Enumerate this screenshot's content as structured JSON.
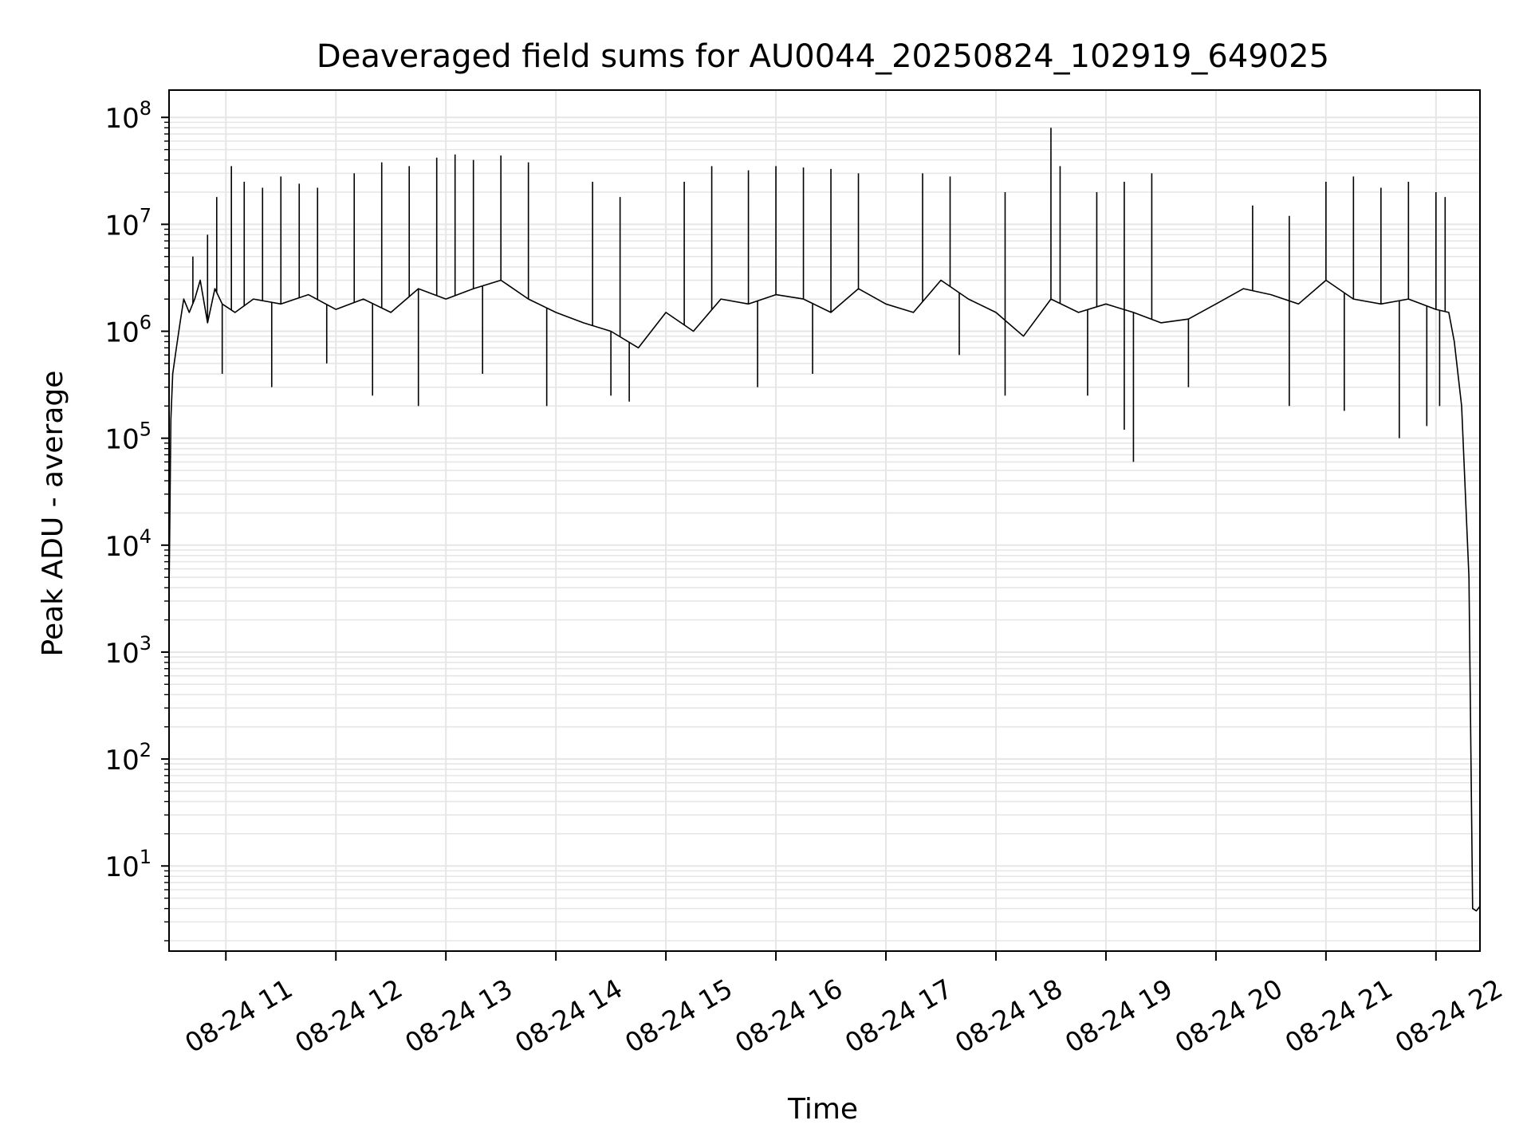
{
  "chart_data": {
    "type": "line",
    "title": "Deaveraged field sums for AU0044_20250824_102919_649025",
    "xlabel": "Time",
    "ylabel": "Peak ADU - average",
    "x_ticks": [
      {
        "value": "2025-08-24T11:00",
        "label": "08-24 11"
      },
      {
        "value": "2025-08-24T12:00",
        "label": "08-24 12"
      },
      {
        "value": "2025-08-24T13:00",
        "label": "08-24 13"
      },
      {
        "value": "2025-08-24T14:00",
        "label": "08-24 14"
      },
      {
        "value": "2025-08-24T15:00",
        "label": "08-24 15"
      },
      {
        "value": "2025-08-24T16:00",
        "label": "08-24 16"
      },
      {
        "value": "2025-08-24T17:00",
        "label": "08-24 17"
      },
      {
        "value": "2025-08-24T18:00",
        "label": "08-24 18"
      },
      {
        "value": "2025-08-24T19:00",
        "label": "08-24 19"
      },
      {
        "value": "2025-08-24T20:00",
        "label": "08-24 20"
      },
      {
        "value": "2025-08-24T21:00",
        "label": "08-24 21"
      },
      {
        "value": "2025-08-24T22:00",
        "label": "08-24 22"
      }
    ],
    "xlim": [
      "2025-08-24T10:29",
      "2025-08-24T22:24"
    ],
    "y_scale": "log",
    "y_ticks": [
      {
        "value": 10,
        "base": "10",
        "exp": "1"
      },
      {
        "value": 100,
        "base": "10",
        "exp": "2"
      },
      {
        "value": 1000,
        "base": "10",
        "exp": "3"
      },
      {
        "value": 10000,
        "base": "10",
        "exp": "4"
      },
      {
        "value": 100000,
        "base": "10",
        "exp": "5"
      },
      {
        "value": 1000000,
        "base": "10",
        "exp": "6"
      },
      {
        "value": 10000000,
        "base": "10",
        "exp": "7"
      },
      {
        "value": 100000000,
        "base": "10",
        "exp": "8"
      }
    ],
    "ylim": [
      1.6,
      180000000
    ],
    "grid": true,
    "line_color": "#000000",
    "grid_color": "#e6e6e6",
    "series": [
      {
        "x": [
          "2025-08-24T10:29",
          "2025-08-24T10:30",
          "2025-08-24T10:31",
          "2025-08-24T10:33",
          "2025-08-24T10:35",
          "2025-08-24T10:37",
          "2025-08-24T10:40",
          "2025-08-24T10:43",
          "2025-08-24T10:46",
          "2025-08-24T10:50",
          "2025-08-24T10:54",
          "2025-08-24T10:58",
          "2025-08-24T11:05",
          "2025-08-24T11:15",
          "2025-08-24T11:30",
          "2025-08-24T11:45",
          "2025-08-24T12:00",
          "2025-08-24T12:15",
          "2025-08-24T12:30",
          "2025-08-24T12:45",
          "2025-08-24T13:00",
          "2025-08-24T13:15",
          "2025-08-24T13:30",
          "2025-08-24T13:45",
          "2025-08-24T14:00",
          "2025-08-24T14:15",
          "2025-08-24T14:30",
          "2025-08-24T14:45",
          "2025-08-24T15:00",
          "2025-08-24T15:15",
          "2025-08-24T15:30",
          "2025-08-24T15:45",
          "2025-08-24T16:00",
          "2025-08-24T16:15",
          "2025-08-24T16:30",
          "2025-08-24T16:45",
          "2025-08-24T17:00",
          "2025-08-24T17:15",
          "2025-08-24T17:30",
          "2025-08-24T17:45",
          "2025-08-24T18:00",
          "2025-08-24T18:15",
          "2025-08-24T18:30",
          "2025-08-24T18:45",
          "2025-08-24T19:00",
          "2025-08-24T19:15",
          "2025-08-24T19:30",
          "2025-08-24T19:45",
          "2025-08-24T20:00",
          "2025-08-24T20:15",
          "2025-08-24T20:30",
          "2025-08-24T20:45",
          "2025-08-24T21:00",
          "2025-08-24T21:15",
          "2025-08-24T21:30",
          "2025-08-24T21:45",
          "2025-08-24T22:00",
          "2025-08-24T22:07",
          "2025-08-24T22:10",
          "2025-08-24T22:14",
          "2025-08-24T22:18",
          "2025-08-24T22:20",
          "2025-08-24T22:22",
          "2025-08-24T22:24"
        ],
        "y": [
          3500,
          150000,
          400000,
          700000,
          1200000,
          2000000,
          1500000,
          2000000,
          3000000,
          1200000,
          2500000,
          1800000,
          1500000,
          2000000,
          1800000,
          2200000,
          1600000,
          2000000,
          1500000,
          2500000,
          2000000,
          2500000,
          3000000,
          2000000,
          1500000,
          1200000,
          1000000,
          700000,
          1500000,
          1000000,
          2000000,
          1800000,
          2200000,
          2000000,
          1500000,
          2500000,
          1800000,
          1500000,
          3000000,
          2000000,
          1500000,
          900000,
          2000000,
          1500000,
          1800000,
          1500000,
          1200000,
          1300000,
          1800000,
          2500000,
          2200000,
          1800000,
          3000000,
          2000000,
          1800000,
          2000000,
          1600000,
          1500000,
          800000,
          200000,
          5000,
          4,
          3.8,
          4.2
        ],
        "spikes": [
          [
            "2025-08-24T10:42",
            5000000
          ],
          [
            "2025-08-24T10:50",
            8000000
          ],
          [
            "2025-08-24T10:55",
            18000000
          ],
          [
            "2025-08-24T11:03",
            35000000
          ],
          [
            "2025-08-24T11:10",
            25000000
          ],
          [
            "2025-08-24T11:20",
            22000000
          ],
          [
            "2025-08-24T11:30",
            28000000
          ],
          [
            "2025-08-24T11:40",
            24000000
          ],
          [
            "2025-08-24T11:50",
            22000000
          ],
          [
            "2025-08-24T12:10",
            30000000
          ],
          [
            "2025-08-24T12:25",
            38000000
          ],
          [
            "2025-08-24T12:40",
            35000000
          ],
          [
            "2025-08-24T12:55",
            42000000
          ],
          [
            "2025-08-24T13:05",
            45000000
          ],
          [
            "2025-08-24T13:15",
            40000000
          ],
          [
            "2025-08-24T13:30",
            44000000
          ],
          [
            "2025-08-24T13:45",
            38000000
          ],
          [
            "2025-08-24T14:20",
            25000000
          ],
          [
            "2025-08-24T14:35",
            18000000
          ],
          [
            "2025-08-24T15:10",
            25000000
          ],
          [
            "2025-08-24T15:25",
            35000000
          ],
          [
            "2025-08-24T15:45",
            32000000
          ],
          [
            "2025-08-24T16:00",
            35000000
          ],
          [
            "2025-08-24T16:15",
            34000000
          ],
          [
            "2025-08-24T16:30",
            33000000
          ],
          [
            "2025-08-24T16:45",
            30000000
          ],
          [
            "2025-08-24T17:20",
            30000000
          ],
          [
            "2025-08-24T17:35",
            28000000
          ],
          [
            "2025-08-24T18:05",
            20000000
          ],
          [
            "2025-08-24T18:30",
            80000000
          ],
          [
            "2025-08-24T18:35",
            35000000
          ],
          [
            "2025-08-24T18:55",
            20000000
          ],
          [
            "2025-08-24T19:10",
            25000000
          ],
          [
            "2025-08-24T19:25",
            30000000
          ],
          [
            "2025-08-24T20:20",
            15000000
          ],
          [
            "2025-08-24T20:40",
            12000000
          ],
          [
            "2025-08-24T21:00",
            25000000
          ],
          [
            "2025-08-24T21:15",
            28000000
          ],
          [
            "2025-08-24T21:30",
            22000000
          ],
          [
            "2025-08-24T21:45",
            25000000
          ],
          [
            "2025-08-24T22:00",
            20000000
          ],
          [
            "2025-08-24T22:05",
            18000000
          ]
        ],
        "dips": [
          [
            "2025-08-24T10:58",
            400000
          ],
          [
            "2025-08-24T11:25",
            300000
          ],
          [
            "2025-08-24T11:55",
            500000
          ],
          [
            "2025-08-24T12:20",
            250000
          ],
          [
            "2025-08-24T12:45",
            200000
          ],
          [
            "2025-08-24T13:20",
            400000
          ],
          [
            "2025-08-24T13:55",
            200000
          ],
          [
            "2025-08-24T14:30",
            250000
          ],
          [
            "2025-08-24T14:40",
            220000
          ],
          [
            "2025-08-24T15:50",
            300000
          ],
          [
            "2025-08-24T16:20",
            400000
          ],
          [
            "2025-08-24T17:40",
            600000
          ],
          [
            "2025-08-24T18:05",
            250000
          ],
          [
            "2025-08-24T18:50",
            250000
          ],
          [
            "2025-08-24T19:10",
            120000
          ],
          [
            "2025-08-24T19:15",
            60000
          ],
          [
            "2025-08-24T19:45",
            300000
          ],
          [
            "2025-08-24T20:40",
            200000
          ],
          [
            "2025-08-24T21:10",
            180000
          ],
          [
            "2025-08-24T21:40",
            100000
          ],
          [
            "2025-08-24T21:55",
            130000
          ],
          [
            "2025-08-24T22:02",
            200000
          ]
        ]
      }
    ]
  }
}
